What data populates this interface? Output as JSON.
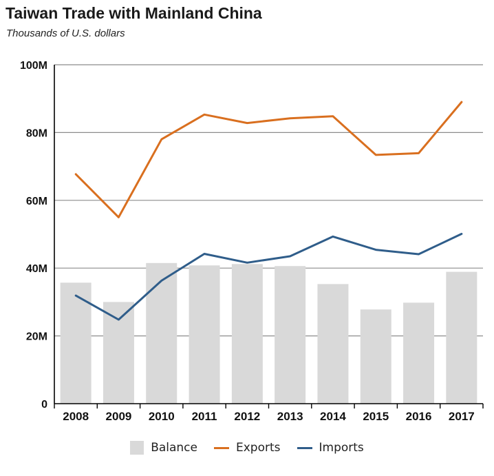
{
  "chart_data": {
    "type": "bar",
    "title": "Taiwan Trade with Mainland China",
    "subtitle": "Thousands of U.S. dollars",
    "categories": [
      "2008",
      "2009",
      "2010",
      "2011",
      "2012",
      "2013",
      "2014",
      "2015",
      "2016",
      "2017"
    ],
    "ylim": [
      0,
      100
    ],
    "yticks": [
      {
        "value": 0,
        "label": "0"
      },
      {
        "value": 20,
        "label": "20M"
      },
      {
        "value": 40,
        "label": "40M"
      },
      {
        "value": 60,
        "label": "60M"
      },
      {
        "value": 80,
        "label": "80M"
      },
      {
        "value": 100,
        "label": "100M"
      }
    ],
    "grid": true,
    "legend_position": "bottom",
    "series": [
      {
        "name": "Balance",
        "kind": "bar",
        "color": "#d9d9d9",
        "values": [
          35.7,
          30.0,
          41.5,
          40.8,
          41.2,
          40.6,
          35.3,
          27.8,
          29.8,
          38.9
        ]
      },
      {
        "name": "Exports",
        "kind": "line",
        "color": "#d96f1f",
        "values": [
          67.7,
          55.0,
          78.0,
          85.3,
          82.8,
          84.2,
          84.8,
          73.4,
          73.9,
          89.0
        ]
      },
      {
        "name": "Imports",
        "kind": "line",
        "color": "#2f5d8a",
        "values": [
          31.9,
          24.8,
          36.3,
          44.2,
          41.6,
          43.5,
          49.3,
          45.4,
          44.1,
          50.1
        ]
      }
    ]
  }
}
